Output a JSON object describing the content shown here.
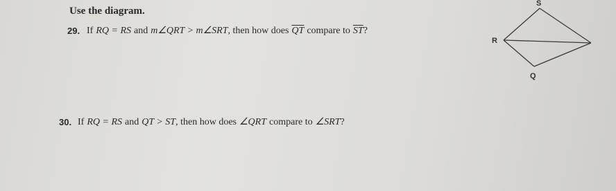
{
  "instruction": "Use the diagram.",
  "questions": [
    {
      "number": "29.",
      "parts": [
        "If",
        "RQ = RS",
        "and",
        "m∠QRT > m∠SRT",
        ", then how does",
        "QT",
        "compare to",
        "ST",
        "?"
      ]
    },
    {
      "number": "30.",
      "parts": [
        "If",
        "RQ = RS",
        "and",
        "QT > ST",
        ", then how does",
        "∠QRT",
        "compare to",
        "∠SRT",
        "?"
      ]
    }
  ],
  "diagram": {
    "labels": [
      "S",
      "R",
      "Q"
    ]
  }
}
